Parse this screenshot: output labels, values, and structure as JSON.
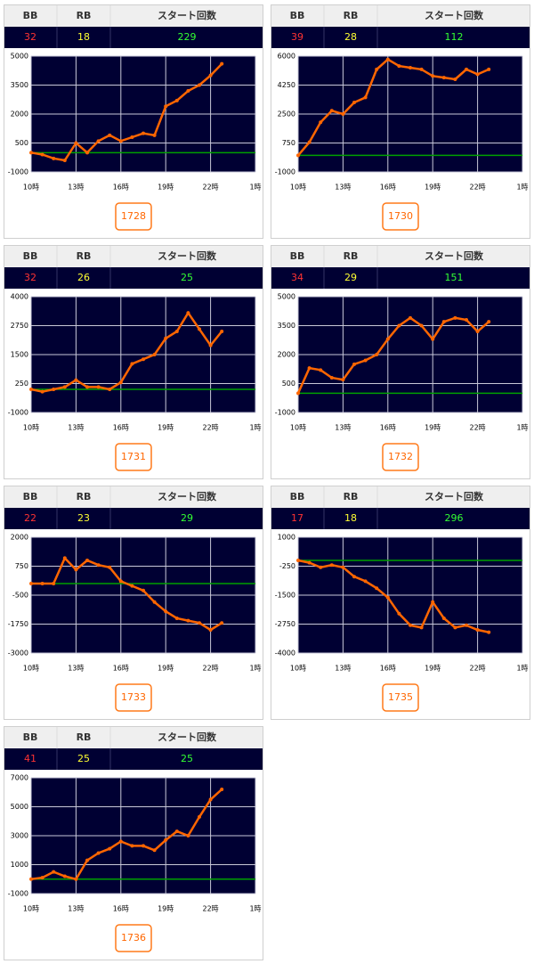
{
  "panels": [
    {
      "table": {
        "headers": [
          "BB",
          "RB",
          "スタート回数"
        ],
        "values": [
          32,
          18,
          229
        ]
      },
      "chart_data": {
        "type": "line",
        "x": [
          10,
          10.75,
          11.5,
          12.25,
          13,
          13.75,
          14.5,
          15.25,
          16,
          16.75,
          17.5,
          18.25,
          19,
          19.75,
          20.5,
          21.25,
          22,
          22.75
        ],
        "series": [
          {
            "color": "#ff6600",
            "values": [
              0,
              -100,
              -300,
              -400,
              500,
              0,
              600,
              900,
              600,
              800,
              1000,
              900,
              2400,
              2700,
              3200,
              3500,
              4000,
              4600
            ]
          }
        ],
        "xlim": [
          10,
          25
        ],
        "xticks": [
          {
            "value": 10,
            "label": "10時"
          },
          {
            "value": 13,
            "label": "13時"
          },
          {
            "value": 16,
            "label": "16時"
          },
          {
            "value": 19,
            "label": "19時"
          },
          {
            "value": 22,
            "label": "22時"
          },
          {
            "value": 25,
            "label": "1時"
          }
        ],
        "ylim": [
          -1000,
          5000
        ],
        "yticks": [
          -1000,
          500,
          2000,
          3500,
          5000
        ],
        "grid": true,
        "reference_line": {
          "value": 0,
          "color": "#00a000"
        }
      },
      "button": "1728"
    },
    {
      "table": {
        "headers": [
          "BB",
          "RB",
          "スタート回数"
        ],
        "values": [
          39,
          28,
          112
        ]
      },
      "chart_data": {
        "type": "line",
        "x": [
          10,
          10.75,
          11.5,
          12.25,
          13,
          13.75,
          14.5,
          15.25,
          16,
          16.75,
          17.5,
          18.25,
          19,
          19.75,
          20.5,
          21.25,
          22,
          22.75
        ],
        "series": [
          {
            "color": "#ff6600",
            "values": [
              0,
              800,
              2000,
              2700,
              2500,
              3200,
              3500,
              5200,
              5800,
              5400,
              5300,
              5200,
              4800,
              4700,
              4600,
              5200,
              4900,
              5200
            ]
          }
        ],
        "xlim": [
          10,
          25
        ],
        "xticks": [
          {
            "value": 10,
            "label": "10時"
          },
          {
            "value": 13,
            "label": "13時"
          },
          {
            "value": 16,
            "label": "16時"
          },
          {
            "value": 19,
            "label": "19時"
          },
          {
            "value": 22,
            "label": "22時"
          },
          {
            "value": 25,
            "label": "1時"
          }
        ],
        "ylim": [
          -1000,
          6000
        ],
        "yticks": [
          -1000,
          750,
          2500,
          4250,
          6000
        ],
        "grid": true,
        "reference_line": {
          "value": 0,
          "color": "#00a000"
        }
      },
      "button": "1730"
    },
    {
      "table": {
        "headers": [
          "BB",
          "RB",
          "スタート回数"
        ],
        "values": [
          32,
          26,
          25
        ]
      },
      "chart_data": {
        "type": "line",
        "x": [
          10,
          10.75,
          11.5,
          12.25,
          13,
          13.75,
          14.5,
          15.25,
          16,
          16.75,
          17.5,
          18.25,
          19,
          19.75,
          20.5,
          21.25,
          22,
          22.75
        ],
        "series": [
          {
            "color": "#ff6600",
            "values": [
              0,
              -100,
              0,
              100,
              400,
              100,
              100,
              0,
              300,
              1100,
              1300,
              1500,
              2200,
              2500,
              3300,
              2600,
              1900,
              2500
            ]
          }
        ],
        "xlim": [
          10,
          25
        ],
        "xticks": [
          {
            "value": 10,
            "label": "10時"
          },
          {
            "value": 13,
            "label": "13時"
          },
          {
            "value": 16,
            "label": "16時"
          },
          {
            "value": 19,
            "label": "19時"
          },
          {
            "value": 22,
            "label": "22時"
          },
          {
            "value": 25,
            "label": "1時"
          }
        ],
        "ylim": [
          -1000,
          4000
        ],
        "yticks": [
          -1000,
          250,
          1500,
          2750,
          4000
        ],
        "grid": true,
        "reference_line": {
          "value": 0,
          "color": "#00a000"
        }
      },
      "button": "1731"
    },
    {
      "table": {
        "headers": [
          "BB",
          "RB",
          "スタート回数"
        ],
        "values": [
          34,
          29,
          151
        ]
      },
      "chart_data": {
        "type": "line",
        "x": [
          10,
          10.75,
          11.5,
          12.25,
          13,
          13.75,
          14.5,
          15.25,
          16,
          16.75,
          17.5,
          18.25,
          19,
          19.75,
          20.5,
          21.25,
          22,
          22.75
        ],
        "series": [
          {
            "color": "#ff6600",
            "values": [
              0,
              1300,
              1200,
              800,
              700,
              1500,
              1700,
              2000,
              2800,
              3500,
              3900,
              3500,
              2800,
              3700,
              3900,
              3800,
              3200,
              3700
            ]
          }
        ],
        "xlim": [
          10,
          25
        ],
        "xticks": [
          {
            "value": 10,
            "label": "10時"
          },
          {
            "value": 13,
            "label": "13時"
          },
          {
            "value": 16,
            "label": "16時"
          },
          {
            "value": 19,
            "label": "19時"
          },
          {
            "value": 22,
            "label": "22時"
          },
          {
            "value": 25,
            "label": "1時"
          }
        ],
        "ylim": [
          -1000,
          5000
        ],
        "yticks": [
          -1000,
          500,
          2000,
          3500,
          5000
        ],
        "grid": true,
        "reference_line": {
          "value": 0,
          "color": "#00a000"
        }
      },
      "button": "1732"
    },
    {
      "table": {
        "headers": [
          "BB",
          "RB",
          "スタート回数"
        ],
        "values": [
          22,
          23,
          29
        ]
      },
      "chart_data": {
        "type": "line",
        "x": [
          10,
          10.75,
          11.5,
          12.25,
          13,
          13.75,
          14.5,
          15.25,
          16,
          16.75,
          17.5,
          18.25,
          19,
          19.75,
          20.5,
          21.25,
          22,
          22.75
        ],
        "series": [
          {
            "color": "#ff6600",
            "values": [
              0,
              0,
              0,
              1100,
              600,
              1000,
              800,
              700,
              100,
              -100,
              -300,
              -800,
              -1200,
              -1500,
              -1600,
              -1700,
              -2000,
              -1700
            ]
          }
        ],
        "xlim": [
          10,
          25
        ],
        "xticks": [
          {
            "value": 10,
            "label": "10時"
          },
          {
            "value": 13,
            "label": "13時"
          },
          {
            "value": 16,
            "label": "16時"
          },
          {
            "value": 19,
            "label": "19時"
          },
          {
            "value": 22,
            "label": "22時"
          },
          {
            "value": 25,
            "label": "1時"
          }
        ],
        "ylim": [
          -3000,
          2000
        ],
        "yticks": [
          -3000,
          -1750,
          -500,
          750,
          2000
        ],
        "grid": true,
        "reference_line": {
          "value": 0,
          "color": "#00a000"
        }
      },
      "button": "1733"
    },
    {
      "table": {
        "headers": [
          "BB",
          "RB",
          "スタート回数"
        ],
        "values": [
          17,
          18,
          296
        ]
      },
      "chart_data": {
        "type": "line",
        "x": [
          10,
          10.75,
          11.5,
          12.25,
          13,
          13.75,
          14.5,
          15.25,
          16,
          16.75,
          17.5,
          18.25,
          19,
          19.75,
          20.5,
          21.25,
          22,
          22.75
        ],
        "series": [
          {
            "color": "#ff6600",
            "values": [
              0,
              -100,
              -300,
              -200,
              -300,
              -700,
              -900,
              -1200,
              -1600,
              -2300,
              -2800,
              -2900,
              -1800,
              -2500,
              -2900,
              -2800,
              -3000,
              -3100
            ]
          }
        ],
        "xlim": [
          10,
          25
        ],
        "xticks": [
          {
            "value": 10,
            "label": "10時"
          },
          {
            "value": 13,
            "label": "13時"
          },
          {
            "value": 16,
            "label": "16時"
          },
          {
            "value": 19,
            "label": "19時"
          },
          {
            "value": 22,
            "label": "22時"
          },
          {
            "value": 25,
            "label": "1時"
          }
        ],
        "ylim": [
          -4000,
          1000
        ],
        "yticks": [
          -4000,
          -2750,
          -1500,
          -250,
          1000
        ],
        "grid": true,
        "reference_line": {
          "value": 0,
          "color": "#00a000"
        }
      },
      "button": "1735"
    },
    {
      "table": {
        "headers": [
          "BB",
          "RB",
          "スタート回数"
        ],
        "values": [
          41,
          25,
          25
        ]
      },
      "chart_data": {
        "type": "line",
        "x": [
          10,
          10.75,
          11.5,
          12.25,
          13,
          13.75,
          14.5,
          15.25,
          16,
          16.75,
          17.5,
          18.25,
          19,
          19.75,
          20.5,
          21.25,
          22,
          22.75
        ],
        "series": [
          {
            "color": "#ff6600",
            "values": [
              0,
              100,
              500,
              200,
              0,
              1300,
              1800,
              2100,
              2600,
              2300,
              2300,
              2000,
              2700,
              3300,
              3000,
              4300,
              5500,
              6200
            ]
          }
        ],
        "xlim": [
          10,
          25
        ],
        "xticks": [
          {
            "value": 10,
            "label": "10時"
          },
          {
            "value": 13,
            "label": "13時"
          },
          {
            "value": 16,
            "label": "16時"
          },
          {
            "value": 19,
            "label": "19時"
          },
          {
            "value": 22,
            "label": "22時"
          },
          {
            "value": 25,
            "label": "1時"
          }
        ],
        "ylim": [
          -1000,
          7000
        ],
        "yticks": [
          -1000,
          1000,
          3000,
          5000,
          7000
        ],
        "grid": true,
        "reference_line": {
          "value": 0,
          "color": "#00a000"
        }
      },
      "button": "1736"
    }
  ]
}
